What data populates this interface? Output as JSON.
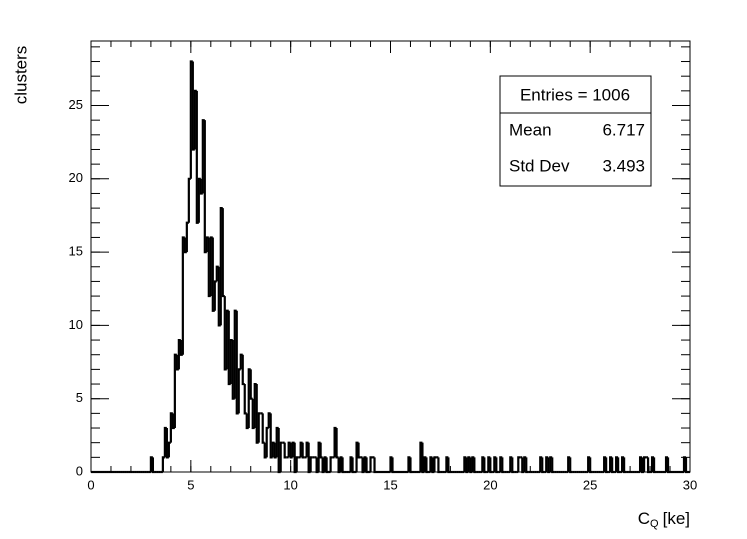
{
  "chart_data": {
    "type": "histogram",
    "ylabel": "clusters",
    "xlabel": {
      "base": "C",
      "sub": "Q",
      "unit": "[ke]"
    },
    "stats": {
      "entries": "Entries = 1006",
      "mean_label": "Mean",
      "mean": 6.717,
      "std_label": "Std Dev",
      "std": 3.493
    },
    "color": "#000000",
    "xlim": [
      0,
      30
    ],
    "xticks": [
      0,
      5,
      10,
      15,
      20,
      25,
      30
    ],
    "ylim": [
      0,
      29.4
    ],
    "yticks": [
      0,
      5,
      10,
      15,
      20,
      25
    ],
    "bins": [
      0,
      0.1,
      0.2,
      0.3,
      0.4,
      0.5,
      0.6,
      0.7,
      0.8,
      0.9,
      1,
      1.1,
      1.2,
      1.3,
      1.4,
      1.5,
      1.6,
      1.7,
      1.8,
      1.9,
      2,
      2.1,
      2.2,
      2.3,
      2.4,
      2.5,
      2.6,
      2.7,
      2.8,
      2.9,
      3,
      3.1,
      3.2,
      3.3,
      3.4,
      3.5,
      3.6,
      3.7,
      3.8,
      3.9,
      4,
      4.1,
      4.2,
      4.3,
      4.4,
      4.5,
      4.6,
      4.7,
      4.8,
      4.9,
      5,
      5.1,
      5.2,
      5.3,
      5.4,
      5.5,
      5.6,
      5.7,
      5.8,
      5.9,
      6,
      6.1,
      6.2,
      6.3,
      6.4,
      6.5,
      6.6,
      6.7,
      6.8,
      6.9,
      7,
      7.1,
      7.2,
      7.3,
      7.4,
      7.5,
      7.6,
      7.7,
      7.8,
      7.9,
      8,
      8.1,
      8.2,
      8.3,
      8.4,
      8.5,
      8.6,
      8.7,
      8.8,
      8.9,
      9,
      9.1,
      9.2,
      9.3,
      9.4,
      9.5,
      9.6,
      9.7,
      9.8,
      9.9,
      10,
      10.1,
      10.2,
      10.3,
      10.4,
      10.5,
      10.6,
      10.7,
      10.8,
      10.9,
      11,
      11.1,
      11.2,
      11.3,
      11.4,
      11.5,
      11.6,
      11.7,
      11.8,
      11.9,
      12,
      12.1,
      12.2,
      12.3,
      12.4,
      12.5,
      12.6,
      12.7,
      12.8,
      12.9,
      13,
      13.1,
      13.2,
      13.3,
      13.4,
      13.5,
      13.6,
      13.7,
      13.8,
      13.9,
      14,
      14.1,
      14.2,
      14.3,
      14.4,
      14.5,
      14.6,
      14.7,
      14.8,
      14.9,
      15,
      15.1,
      15.2,
      15.3,
      15.4,
      15.5,
      15.6,
      15.7,
      15.8,
      15.9,
      16,
      16.1,
      16.2,
      16.3,
      16.4,
      16.5,
      16.6,
      16.7,
      16.8,
      16.9,
      17,
      17.1,
      17.2,
      17.3,
      17.4,
      17.5,
      17.6,
      17.7,
      17.8,
      17.9,
      18,
      18.1,
      18.2,
      18.3,
      18.4,
      18.5,
      18.6,
      18.7,
      18.8,
      18.9,
      19,
      19.1,
      19.2,
      19.3,
      19.4,
      19.5,
      19.6,
      19.7,
      19.8,
      19.9,
      20,
      20.1,
      20.2,
      20.3,
      20.4,
      20.5,
      20.6,
      20.7,
      20.8,
      20.9,
      21,
      21.1,
      21.2,
      21.3,
      21.4,
      21.5,
      21.6,
      21.7,
      21.8,
      21.9,
      22,
      22.1,
      22.2,
      22.3,
      22.4,
      22.5,
      22.6,
      22.7,
      22.8,
      22.9,
      23,
      23.1,
      23.2,
      23.3,
      23.4,
      23.5,
      23.6,
      23.7,
      23.8,
      23.9,
      24,
      24.1,
      24.2,
      24.3,
      24.4,
      24.5,
      24.6,
      24.7,
      24.8,
      24.9,
      25,
      25.1,
      25.2,
      25.3,
      25.4,
      25.5,
      25.6,
      25.7,
      25.8,
      25.9,
      26,
      26.1,
      26.2,
      26.3,
      26.4,
      26.5,
      26.6,
      26.7,
      26.8,
      26.9,
      27,
      27.1,
      27.2,
      27.3,
      27.4,
      27.5,
      27.6,
      27.7,
      27.8,
      27.9,
      28,
      28.1,
      28.2,
      28.3,
      28.4,
      28.5,
      28.6,
      28.7,
      28.8,
      28.9,
      29,
      29.1,
      29.2,
      29.3,
      29.4,
      29.5,
      29.6,
      29.7,
      29.8,
      29.9,
      30
    ],
    "counts": [
      0,
      0,
      0,
      0,
      0,
      0,
      0,
      0,
      0,
      0,
      0,
      0,
      0,
      0,
      0,
      0,
      0,
      0,
      0,
      0,
      0,
      0,
      0,
      0,
      0,
      0,
      0,
      0,
      0,
      0,
      1,
      0,
      0,
      0,
      0,
      0,
      1,
      3,
      1,
      2,
      4,
      3,
      8,
      7,
      9,
      8,
      16,
      15,
      17,
      20,
      28,
      22,
      26,
      17,
      20,
      19,
      24,
      15,
      16,
      12,
      16,
      11,
      13,
      14,
      10,
      18,
      12,
      7,
      11,
      6,
      9,
      5,
      11,
      4,
      7,
      8,
      6,
      4,
      3,
      7,
      5,
      3,
      6,
      2,
      4,
      4,
      2,
      1,
      3,
      4,
      1,
      2,
      1,
      3,
      0,
      2,
      2,
      1,
      1,
      2,
      1,
      2,
      0,
      1,
      1,
      2,
      1,
      1,
      2,
      0,
      1,
      1,
      1,
      0,
      2,
      1,
      0,
      1,
      0,
      0,
      1,
      1,
      3,
      1,
      0,
      1,
      0,
      0,
      0,
      0,
      1,
      0,
      0,
      2,
      1,
      1,
      0,
      1,
      0,
      0,
      1,
      1,
      0,
      0,
      0,
      0,
      0,
      0,
      0,
      0,
      1,
      0,
      0,
      0,
      0,
      0,
      0,
      0,
      0,
      1,
      0,
      0,
      0,
      0,
      0,
      2,
      0,
      1,
      0,
      0,
      1,
      0,
      1,
      1,
      0,
      0,
      0,
      0,
      1,
      0,
      0,
      0,
      0,
      0,
      0,
      0,
      0,
      1,
      0,
      1,
      0,
      1,
      0,
      0,
      0,
      0,
      1,
      0,
      0,
      1,
      0,
      0,
      1,
      0,
      0,
      1,
      0,
      0,
      0,
      0,
      1,
      0,
      0,
      0,
      1,
      1,
      0,
      1,
      0,
      0,
      0,
      0,
      0,
      0,
      0,
      1,
      0,
      0,
      1,
      0,
      1,
      0,
      0,
      0,
      0,
      0,
      0,
      0,
      0,
      1,
      0,
      0,
      0,
      0,
      0,
      0,
      0,
      0,
      0,
      1,
      0,
      0,
      0,
      0,
      0,
      0,
      0,
      1,
      0,
      0,
      1,
      0,
      0,
      1,
      0,
      0,
      1,
      0,
      0,
      0,
      0,
      0,
      0,
      0,
      0,
      1,
      0,
      1,
      1,
      0,
      0,
      1,
      0,
      0,
      0,
      0,
      0,
      0,
      1,
      0,
      0,
      0,
      0,
      0,
      0,
      0,
      0,
      1,
      0,
      0
    ]
  }
}
